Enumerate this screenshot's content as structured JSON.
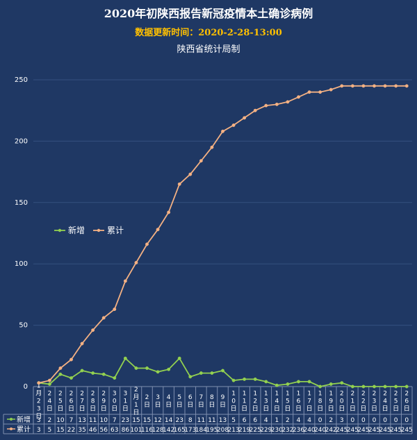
{
  "header": {
    "title": "2020年初陕西报告新冠疫情本土确诊病例",
    "update_text": "数据更新时间：2020-2-28-13:00",
    "source": "陕西省统计局制"
  },
  "colors": {
    "background": "#1f3864",
    "new": "#92d050",
    "cumulative": "#f4b183",
    "grid": "#34507f",
    "text": "#ffffff"
  },
  "chart_data": {
    "type": "line",
    "categories": [
      "1月23日",
      "24日",
      "25日",
      "26日",
      "27日",
      "28日",
      "29日",
      "30日",
      "31日",
      "2月1日",
      "2日",
      "3日",
      "4日",
      "5日",
      "6日",
      "7日",
      "8日",
      "9日",
      "10日",
      "11日",
      "12日",
      "13日",
      "14日",
      "15日",
      "16日",
      "17日",
      "18日",
      "19日",
      "20日",
      "21日",
      "22日",
      "23日",
      "24日",
      "25日",
      "26日"
    ],
    "series": [
      {
        "name": "新增",
        "values": [
          3,
          2,
          10,
          7,
          13,
          11,
          10,
          7,
          23,
          15,
          15,
          12,
          14,
          23,
          8,
          11,
          11,
          13,
          5,
          6,
          6,
          4,
          1,
          2,
          4,
          4,
          0,
          2,
          3,
          0,
          0,
          0,
          0,
          0,
          0
        ]
      },
      {
        "name": "累计",
        "values": [
          3,
          5,
          15,
          22,
          35,
          46,
          56,
          63,
          86,
          101,
          116,
          128,
          142,
          165,
          173,
          184,
          195,
          208,
          213,
          219,
          225,
          229,
          230,
          232,
          236,
          240,
          240,
          242,
          245,
          245,
          245,
          245,
          245,
          245,
          245
        ]
      }
    ],
    "yticks": [
      0,
      50,
      100,
      150,
      200,
      250
    ],
    "ylim": [
      0,
      250
    ],
    "legend_position": "left"
  }
}
